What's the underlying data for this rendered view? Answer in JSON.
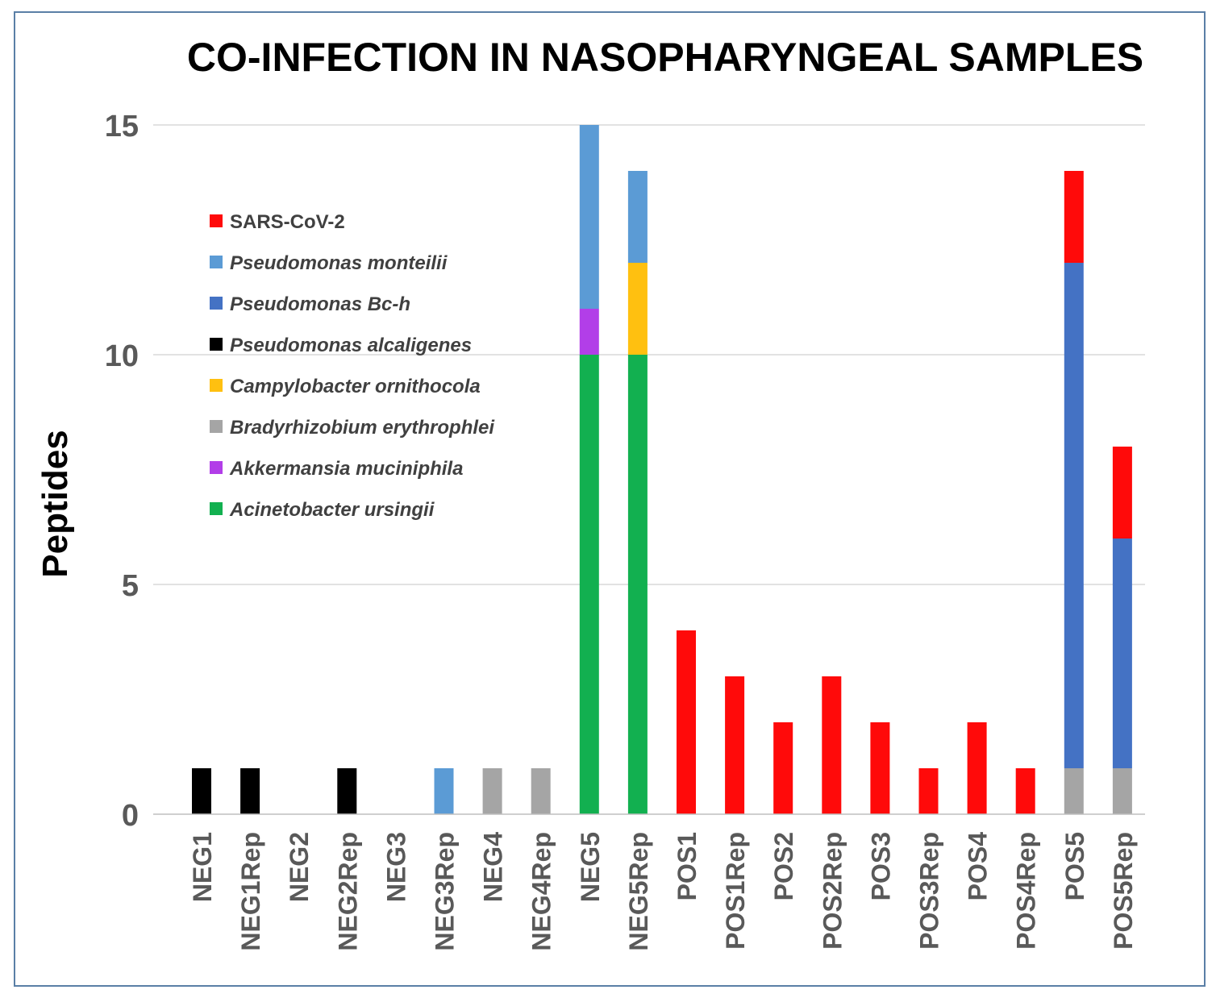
{
  "chart_data": {
    "type": "bar",
    "stacked": true,
    "title": "CO-INFECTION IN NASOPHARYNGEAL SAMPLES",
    "ylabel": "Peptides",
    "xlabel": "",
    "ylim": [
      0,
      15
    ],
    "yticks": [
      0,
      5,
      10,
      15
    ],
    "grid": true,
    "legend_position": "top-left",
    "categories": [
      "NEG1",
      "NEG1Rep",
      "NEG2",
      "NEG2Rep",
      "NEG3",
      "NEG3Rep",
      "NEG4",
      "NEG4Rep",
      "NEG5",
      "NEG5Rep",
      "POS1",
      "POS1Rep",
      "POS2",
      "POS2Rep",
      "POS3",
      "POS3Rep",
      "POS4",
      "POS4Rep",
      "POS5",
      "POS5Rep"
    ],
    "series": [
      {
        "name": "Bradyrhizobium erythrophlei",
        "color": "#a5a5a5",
        "italic": true,
        "values": [
          0,
          0,
          0,
          0,
          0,
          0,
          1,
          1,
          0,
          0,
          0,
          0,
          0,
          0,
          0,
          0,
          0,
          0,
          1,
          1
        ]
      },
      {
        "name": "Pseudomonas alcaligenes",
        "color": "#000000",
        "italic": true,
        "values": [
          1,
          1,
          0,
          1,
          0,
          0,
          0,
          0,
          0,
          0,
          0,
          0,
          0,
          0,
          0,
          0,
          0,
          0,
          0,
          0
        ]
      },
      {
        "name": "Acinetobacter ursingii",
        "color": "#12b050",
        "italic": true,
        "values": [
          0,
          0,
          0,
          0,
          0,
          0,
          0,
          0,
          10,
          10,
          0,
          0,
          0,
          0,
          0,
          0,
          0,
          0,
          0,
          0
        ]
      },
      {
        "name": "Akkermansia muciniphila",
        "color": "#b23ee8",
        "italic": true,
        "values": [
          0,
          0,
          0,
          0,
          0,
          0,
          0,
          0,
          1,
          0,
          0,
          0,
          0,
          0,
          0,
          0,
          0,
          0,
          0,
          0
        ]
      },
      {
        "name": "Campylobacter ornithocola",
        "color": "#ffc010",
        "italic": true,
        "values": [
          0,
          0,
          0,
          0,
          0,
          0,
          0,
          0,
          0,
          2,
          0,
          0,
          0,
          0,
          0,
          0,
          0,
          0,
          0,
          0
        ]
      },
      {
        "name": "Pseudomonas monteilii",
        "color": "#5b9bd5",
        "italic": true,
        "values": [
          0,
          0,
          0,
          0,
          0,
          1,
          0,
          0,
          4,
          2,
          0,
          0,
          0,
          0,
          0,
          0,
          0,
          0,
          0,
          0
        ]
      },
      {
        "name": "Pseudomonas Bc-h",
        "color": "#4472c4",
        "italic": true,
        "values": [
          0,
          0,
          0,
          0,
          0,
          0,
          0,
          0,
          0,
          0,
          0,
          0,
          0,
          0,
          0,
          0,
          0,
          0,
          11,
          5
        ]
      },
      {
        "name": "SARS-CoV-2",
        "color": "#ff0a0a",
        "italic": false,
        "values": [
          0,
          0,
          0,
          0,
          0,
          0,
          0,
          0,
          0,
          0,
          4,
          3,
          2,
          3,
          2,
          1,
          2,
          1,
          2,
          2
        ]
      }
    ],
    "legend_order": [
      "SARS-CoV-2",
      "Pseudomonas monteilii",
      "Pseudomonas Bc-h",
      "Pseudomonas alcaligenes",
      "Campylobacter ornithocola",
      "Bradyrhizobium erythrophlei",
      "Akkermansia muciniphila",
      "Acinetobacter ursingii"
    ]
  }
}
